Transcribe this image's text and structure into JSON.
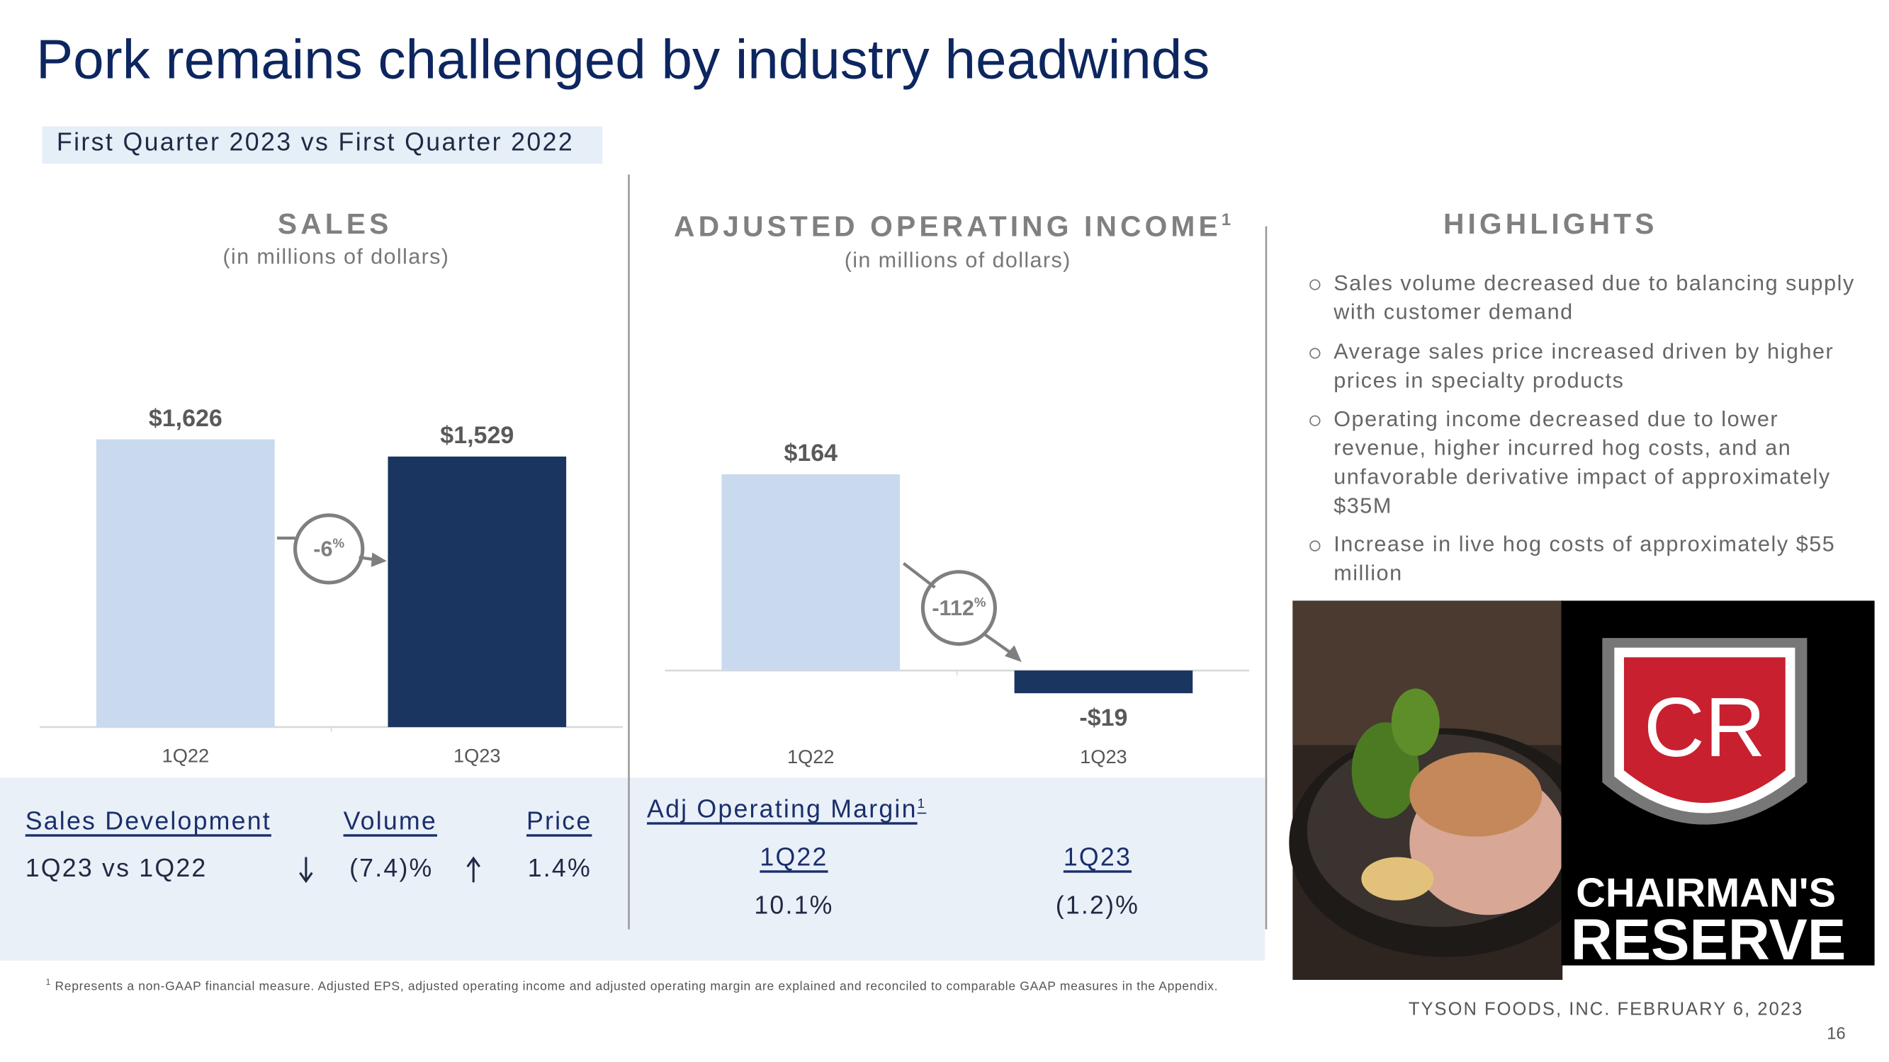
{
  "title": "Pork remains challenged by industry headwinds",
  "subtitle": "First Quarter 2023 vs First Quarter 2022",
  "chart_data": [
    {
      "type": "bar",
      "title": "SALES",
      "subtitle": "(in millions of dollars)",
      "categories": [
        "1Q22",
        "1Q23"
      ],
      "values": [
        1626,
        1529
      ],
      "value_labels": [
        "$1,626",
        "$1,529"
      ],
      "colors": [
        "#c9daee",
        "#1a3560"
      ],
      "change_label": "-6",
      "change_unit": "%"
    },
    {
      "type": "bar",
      "title": "ADJUSTED OPERATING INCOME",
      "title_note": "1",
      "subtitle": "(in millions of dollars)",
      "categories": [
        "1Q22",
        "1Q23"
      ],
      "values": [
        164,
        -19
      ],
      "value_labels": [
        "$164",
        "-$19"
      ],
      "colors": [
        "#c9daee",
        "#1a3560"
      ],
      "change_label": "-112",
      "change_unit": "%"
    }
  ],
  "highlights": {
    "title": "HIGHLIGHTS",
    "items": [
      "Sales volume decreased due to balancing supply with customer demand",
      "Average sales price increased driven by higher prices in specialty products",
      "Operating income decreased due to lower revenue, higher incurred hog costs, and an unfavorable derivative impact of approximately $35M",
      "Increase in live hog costs of approximately $55 million"
    ]
  },
  "sales_development": {
    "title": "Sales Development",
    "period": "1Q23 vs 1Q22",
    "columns": [
      {
        "header": "Volume",
        "value": "(7.4)%"
      },
      {
        "header": "Price",
        "value": "1.4%"
      }
    ]
  },
  "margin": {
    "title": "Adj Operating Margin",
    "title_note": "1",
    "columns": [
      {
        "header": "1Q22",
        "value": "10.1%"
      },
      {
        "header": "1Q23",
        "value": "(1.2)%"
      }
    ]
  },
  "logo": {
    "monogram": "CR",
    "lines": [
      "CHAIRMAN'S",
      "RESERVE"
    ]
  },
  "footnote": {
    "marker": "1",
    "text": "Represents a non-GAAP financial measure. Adjusted EPS, adjusted operating income and adjusted operating margin are explained and reconciled to comparable GAAP measures in the Appendix."
  },
  "footer": "TYSON FOODS, INC. FEBRUARY 6, 2023",
  "page_number": "16"
}
